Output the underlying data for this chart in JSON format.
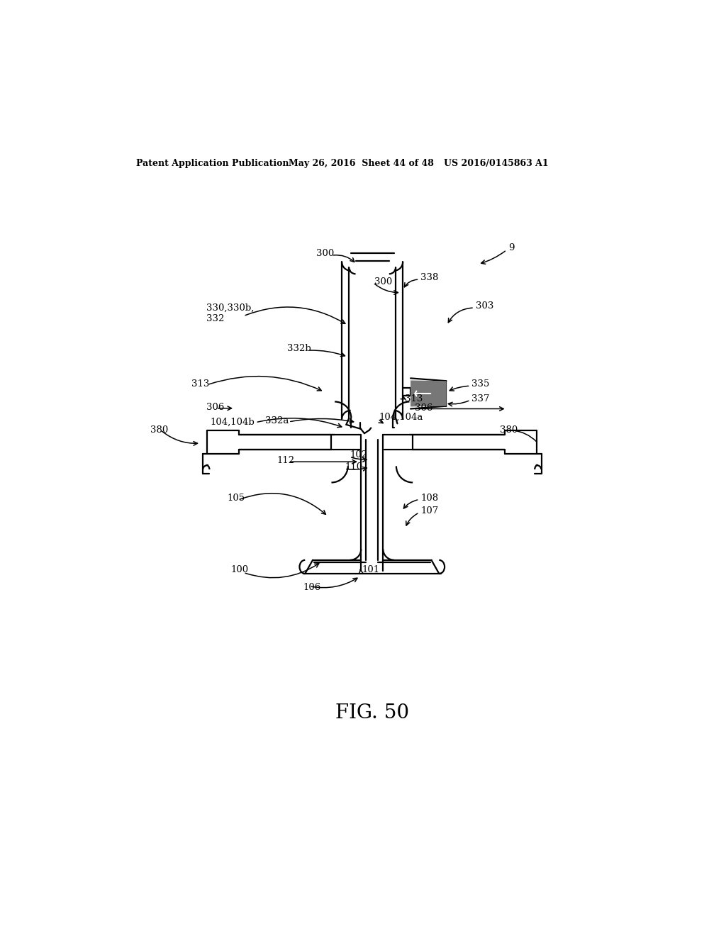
{
  "header_left": "Patent Application Publication",
  "header_mid": "May 26, 2016  Sheet 44 of 48",
  "header_right": "US 2016/0145863 A1",
  "figure_label": "FIG. 50",
  "bg_color": "#ffffff",
  "line_color": "#000000",
  "lw": 1.6,
  "lw_thin": 1.0
}
